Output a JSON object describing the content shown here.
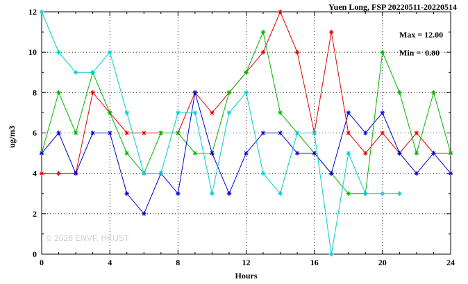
{
  "title": "Yuen Long, FSP 20220511-20220514",
  "annotation": {
    "max_label": "Max = 12.00",
    "min_label": "Min =  0.00"
  },
  "watermark": "© 2026 ENVF, HKUST",
  "axes": {
    "xlabel": "Hours",
    "ylabel": "ug/m3"
  },
  "chart_data": {
    "type": "line",
    "title": "Yuen Long, FSP 20220511-20220514",
    "xlabel": "Hours",
    "ylabel": "ug/m3",
    "xlim": [
      0,
      24
    ],
    "ylim": [
      0,
      12
    ],
    "x_ticks": [
      0,
      4,
      8,
      12,
      16,
      20,
      24
    ],
    "y_ticks": [
      0,
      2,
      4,
      6,
      8,
      10,
      12
    ],
    "x_minor_step": 1,
    "y_minor_step": 1,
    "grid": true,
    "legend_position": "none",
    "marker": "asterisk",
    "annotations": [
      "Max = 12.00",
      "Min =  0.00"
    ],
    "series": [
      {
        "name": "red-series",
        "color": "#dd0000",
        "x_start": 0,
        "x_step": 1,
        "values": [
          4,
          4,
          4,
          8,
          7,
          6,
          6,
          6,
          6,
          8,
          7,
          8,
          9,
          10,
          12,
          10,
          6,
          11,
          6,
          5,
          6,
          5,
          6,
          5,
          5
        ]
      },
      {
        "name": "green-series",
        "color": "#00b400",
        "x_start": 0,
        "x_step": 1,
        "values": [
          5,
          8,
          6,
          9,
          7,
          5,
          4,
          6,
          6,
          5,
          5,
          8,
          9,
          11,
          7,
          6,
          5,
          4,
          3,
          3,
          10,
          8,
          5,
          8,
          5
        ]
      },
      {
        "name": "blue-series",
        "color": "#0000cd",
        "x_start": 0,
        "x_step": 1,
        "values": [
          5,
          6,
          4,
          6,
          6,
          3,
          2,
          4,
          3,
          8,
          5,
          3,
          5,
          6,
          6,
          5,
          5,
          4,
          7,
          6,
          7,
          5,
          4,
          5,
          4
        ]
      },
      {
        "name": "cyan-series",
        "color": "#00cdcd",
        "x_start": 0,
        "x_step": 1,
        "values": [
          12,
          10,
          9,
          9,
          10,
          7,
          4,
          4,
          7,
          7,
          3,
          7,
          8,
          4,
          3,
          6,
          6,
          0,
          5,
          3,
          3,
          3
        ]
      }
    ]
  }
}
